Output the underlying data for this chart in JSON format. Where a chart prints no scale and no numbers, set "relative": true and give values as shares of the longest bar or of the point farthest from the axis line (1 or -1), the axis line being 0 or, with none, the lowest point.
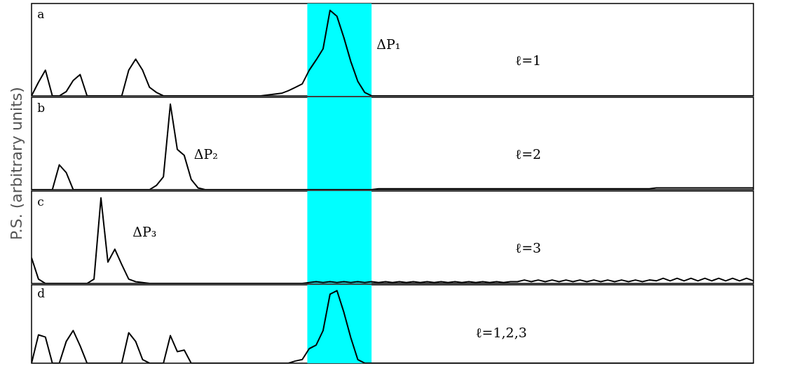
{
  "chart_data": [
    {
      "type": "line",
      "relative": true,
      "ylabel": "P.S. (arbitrary units)",
      "color": "#000000",
      "categories": [
        null,
        null,
        null,
        null,
        null,
        null,
        null,
        null,
        null,
        null,
        null,
        null,
        null,
        null,
        null,
        null,
        null,
        null,
        null,
        null,
        null,
        null,
        null,
        null,
        null,
        null,
        null,
        null,
        null,
        null,
        null,
        null,
        null,
        null,
        null,
        null,
        null,
        null,
        null,
        null,
        null,
        null,
        null,
        null,
        null,
        null,
        null,
        null,
        null,
        null,
        null,
        null,
        null,
        null,
        null,
        null,
        null,
        null,
        null,
        null,
        null,
        null,
        null,
        null,
        null,
        null,
        null,
        null,
        null,
        null,
        null,
        null,
        null,
        null,
        null,
        null,
        null,
        null,
        null,
        null,
        null,
        null,
        null,
        null,
        null,
        null,
        null,
        null,
        null,
        null,
        null,
        null,
        null,
        null,
        null,
        null,
        null,
        null,
        null,
        null,
        null,
        null,
        null,
        null,
        null
      ],
      "values": [
        0,
        0.16,
        0.3,
        0,
        0,
        0.05,
        0.18,
        0.25,
        0,
        0,
        0,
        0,
        0,
        0,
        0.3,
        0.43,
        0.3,
        0.1,
        0.04,
        0,
        0,
        0,
        0,
        0,
        0,
        0,
        0,
        0,
        0,
        0,
        0,
        0,
        0,
        0,
        0.01,
        0.02,
        0.03,
        0.06,
        0.1,
        0.14,
        0.3,
        0.42,
        0.55,
        1,
        0.93,
        0.68,
        0.4,
        0.17,
        0.04,
        0,
        0,
        0,
        0,
        0,
        0,
        0,
        0,
        0,
        0,
        0,
        0,
        0,
        0,
        0,
        0,
        0,
        0,
        0,
        0,
        0,
        0,
        0,
        0,
        0,
        0,
        0,
        0,
        0,
        0,
        0,
        0,
        0,
        0,
        0,
        0,
        0,
        0,
        0,
        0,
        0,
        0,
        0,
        0,
        0,
        0,
        0,
        0,
        0,
        0,
        0,
        0,
        0,
        0,
        0,
        0
      ],
      "annotations": [
        "a",
        "ΔP₁",
        "ℓ=1"
      ]
    },
    {
      "type": "line",
      "relative": true,
      "color": "#000000",
      "categories": [
        null,
        null,
        null,
        null,
        null,
        null,
        null,
        null,
        null,
        null,
        null,
        null,
        null,
        null,
        null,
        null,
        null,
        null,
        null,
        null,
        null,
        null,
        null,
        null,
        null,
        null,
        null,
        null,
        null,
        null,
        null,
        null,
        null,
        null,
        null,
        null,
        null,
        null,
        null,
        null,
        null,
        null,
        null,
        null,
        null,
        null,
        null,
        null,
        null,
        null,
        null,
        null,
        null,
        null,
        null,
        null,
        null,
        null,
        null,
        null,
        null,
        null,
        null,
        null,
        null,
        null,
        null,
        null,
        null,
        null,
        null,
        null,
        null,
        null,
        null,
        null,
        null,
        null,
        null,
        null,
        null,
        null,
        null,
        null,
        null,
        null,
        null,
        null,
        null,
        null,
        null,
        null,
        null,
        null,
        null,
        null,
        null,
        null,
        null,
        null,
        null,
        null,
        null,
        null,
        null
      ],
      "values": [
        0,
        0,
        0,
        0,
        0.29,
        0.2,
        0,
        0,
        0,
        0,
        0,
        0,
        0,
        0,
        0,
        0,
        0,
        0,
        0.05,
        0.15,
        1,
        0.47,
        0.4,
        0.12,
        0.02,
        0,
        0,
        0,
        0,
        0,
        0,
        0,
        0,
        0,
        0,
        0,
        0,
        0,
        0,
        0,
        0,
        0,
        0,
        0,
        0,
        0,
        0,
        0,
        0,
        0,
        0.01,
        0.01,
        0.01,
        0.01,
        0.01,
        0.01,
        0.01,
        0.01,
        0.01,
        0.01,
        0.01,
        0.01,
        0.01,
        0.01,
        0.01,
        0.01,
        0.01,
        0.01,
        0.01,
        0.01,
        0.01,
        0.01,
        0.01,
        0.01,
        0.01,
        0.01,
        0.01,
        0.01,
        0.01,
        0.01,
        0.01,
        0.01,
        0.01,
        0.01,
        0.01,
        0.01,
        0.01,
        0.01,
        0.01,
        0.01,
        0.02,
        0.02,
        0.02,
        0.02,
        0.02,
        0.02,
        0.02,
        0.02,
        0.02,
        0.02,
        0.02,
        0.02,
        0.02,
        0.02,
        0.02
      ],
      "annotations": [
        "b",
        "ΔP₂",
        "ℓ=2"
      ]
    },
    {
      "type": "line",
      "relative": true,
      "color": "#000000",
      "categories": [
        null,
        null,
        null,
        null,
        null,
        null,
        null,
        null,
        null,
        null,
        null,
        null,
        null,
        null,
        null,
        null,
        null,
        null,
        null,
        null,
        null,
        null,
        null,
        null,
        null,
        null,
        null,
        null,
        null,
        null,
        null,
        null,
        null,
        null,
        null,
        null,
        null,
        null,
        null,
        null,
        null,
        null,
        null,
        null,
        null,
        null,
        null,
        null,
        null,
        null,
        null,
        null,
        null,
        null,
        null,
        null,
        null,
        null,
        null,
        null,
        null,
        null,
        null,
        null,
        null,
        null,
        null,
        null,
        null,
        null,
        null,
        null,
        null,
        null,
        null,
        null,
        null,
        null,
        null,
        null,
        null,
        null,
        null,
        null,
        null,
        null,
        null,
        null,
        null,
        null,
        null,
        null,
        null,
        null,
        null,
        null,
        null,
        null,
        null,
        null,
        null,
        null,
        null,
        null,
        null
      ],
      "values": [
        0.3,
        0.05,
        0,
        0,
        0,
        0,
        0,
        0,
        0,
        0.05,
        1,
        0.25,
        0.4,
        0.22,
        0.05,
        0.02,
        0.01,
        0,
        0,
        0,
        0,
        0,
        0,
        0,
        0,
        0,
        0,
        0,
        0,
        0,
        0,
        0,
        0,
        0,
        0,
        0,
        0,
        0,
        0,
        0,
        0.01,
        0.02,
        0.01,
        0.02,
        0.01,
        0.02,
        0.01,
        0.02,
        0.01,
        0.02,
        0.01,
        0.02,
        0.01,
        0.02,
        0.01,
        0.02,
        0.01,
        0.02,
        0.01,
        0.02,
        0.01,
        0.02,
        0.01,
        0.02,
        0.01,
        0.02,
        0.01,
        0.02,
        0.01,
        0.02,
        0.02,
        0.04,
        0.02,
        0.04,
        0.02,
        0.04,
        0.02,
        0.04,
        0.02,
        0.04,
        0.02,
        0.04,
        0.02,
        0.04,
        0.02,
        0.04,
        0.02,
        0.04,
        0.02,
        0.04,
        0.03,
        0.06,
        0.03,
        0.06,
        0.03,
        0.06,
        0.03,
        0.06,
        0.03,
        0.06,
        0.03,
        0.06,
        0.03,
        0.06,
        0.03
      ],
      "annotations": [
        "c",
        "ΔP₃",
        "ℓ=3"
      ]
    },
    {
      "type": "line",
      "relative": true,
      "color": "#000000",
      "categories": [
        null,
        null,
        null,
        null,
        null,
        null,
        null,
        null,
        null,
        null,
        null,
        null,
        null,
        null,
        null,
        null,
        null,
        null,
        null,
        null,
        null,
        null,
        null,
        null,
        null,
        null,
        null,
        null,
        null,
        null,
        null,
        null,
        null,
        null,
        null,
        null,
        null,
        null,
        null,
        null,
        null,
        null,
        null,
        null,
        null,
        null,
        null,
        null,
        null,
        null,
        null,
        null,
        null,
        null,
        null,
        null,
        null,
        null,
        null,
        null,
        null,
        null,
        null,
        null,
        null,
        null,
        null,
        null,
        null,
        null,
        null,
        null,
        null,
        null,
        null,
        null,
        null,
        null,
        null,
        null,
        null,
        null,
        null,
        null,
        null,
        null,
        null,
        null,
        null,
        null,
        null,
        null,
        null,
        null,
        null,
        null,
        null,
        null,
        null,
        null,
        null,
        null,
        null,
        null,
        null
      ],
      "values": [
        0,
        0.39,
        0.36,
        0,
        0,
        0.3,
        0.45,
        0.24,
        0,
        0,
        0,
        0,
        0,
        0,
        0.42,
        0.3,
        0.05,
        0,
        0,
        0,
        0.38,
        0.16,
        0.18,
        0,
        0,
        0,
        0,
        0,
        0,
        0,
        0,
        0,
        0,
        0,
        0,
        0,
        0,
        0,
        0.03,
        0.05,
        0.2,
        0.25,
        0.45,
        0.95,
        1,
        0.7,
        0.35,
        0.05,
        0,
        0,
        0,
        0,
        0,
        0,
        0,
        0,
        0,
        0,
        0,
        0,
        0,
        0,
        0,
        0,
        0,
        0,
        0,
        0,
        0,
        0,
        0,
        0,
        0,
        0,
        0,
        0,
        0,
        0,
        0,
        0,
        0,
        0,
        0,
        0,
        0,
        0,
        0,
        0,
        0,
        0,
        0,
        0,
        0,
        0,
        0,
        0,
        0,
        0,
        0,
        0,
        0,
        0,
        0,
        0,
        0
      ],
      "annotations": [
        "d",
        "ℓ=1,2,3"
      ]
    }
  ]
}
